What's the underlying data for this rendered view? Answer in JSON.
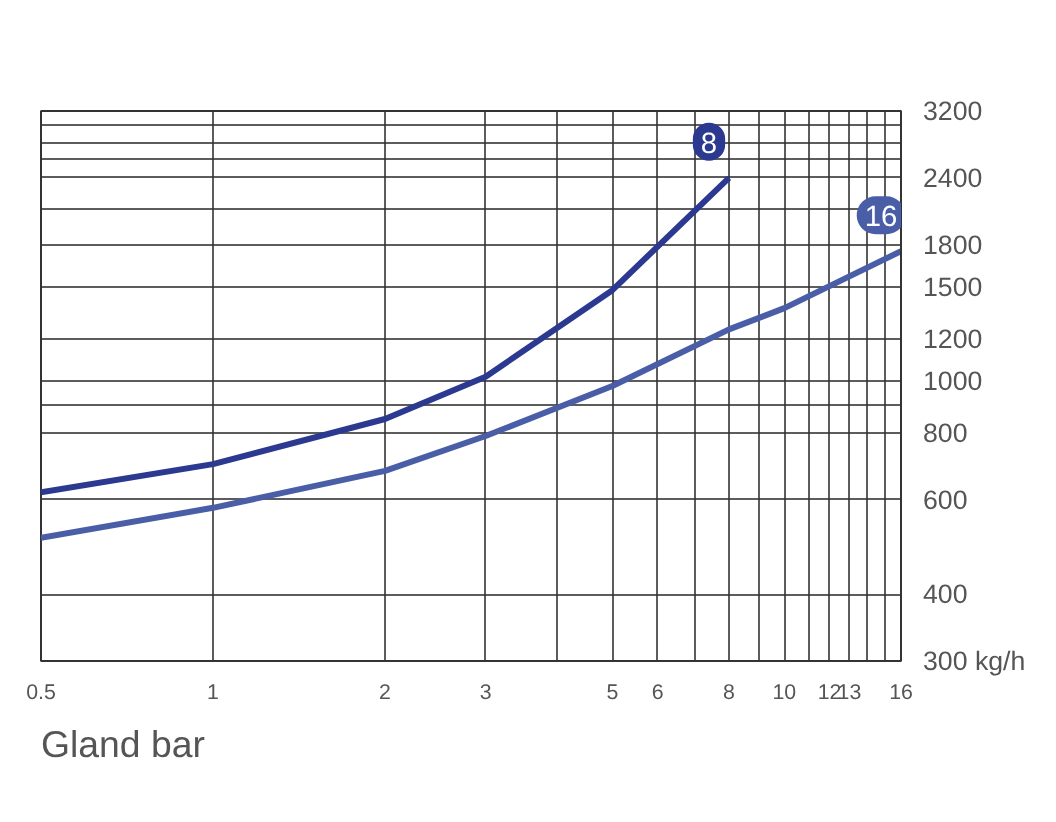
{
  "chart_data": {
    "type": "line",
    "log": "xy",
    "xlim": [
      0.5,
      16
    ],
    "ylim": [
      300,
      3200
    ],
    "xticks": [
      0.5,
      1,
      2,
      3,
      {
        "value": 4,
        "label": null
      },
      5,
      6,
      {
        "value": 7,
        "label": null
      },
      8,
      {
        "value": 9,
        "label": null
      },
      10,
      {
        "value": 11,
        "label": null
      },
      12,
      13,
      {
        "value": 14,
        "label": null
      },
      {
        "value": 15,
        "label": null
      },
      16
    ],
    "yticks": [
      {
        "value": 300,
        "label": "300 kg/h"
      },
      400,
      600,
      800,
      {
        "value": 900,
        "label": null
      },
      1000,
      1200,
      1500,
      1800,
      {
        "value": 2100,
        "label": null
      },
      2400,
      {
        "value": 2600,
        "label": null
      },
      {
        "value": 2800,
        "label": null
      },
      {
        "value": 3000,
        "label": null
      },
      3200
    ],
    "grid": true,
    "legend": false,
    "marker": "none",
    "line_style": "solid",
    "series": [
      {
        "name": "8",
        "color": "#2b3990",
        "x": [
          0.5,
          1,
          2,
          3,
          5,
          8
        ],
        "values": [
          620,
          700,
          850,
          1020,
          1480,
          2400
        ]
      },
      {
        "name": "16",
        "color": "#4a5ea8",
        "x": [
          0.5,
          1,
          2,
          3,
          5,
          8,
          10,
          16
        ],
        "values": [
          510,
          580,
          680,
          790,
          980,
          1250,
          1370,
          1750
        ]
      }
    ],
    "annotations": [
      "Gland bar"
    ]
  }
}
